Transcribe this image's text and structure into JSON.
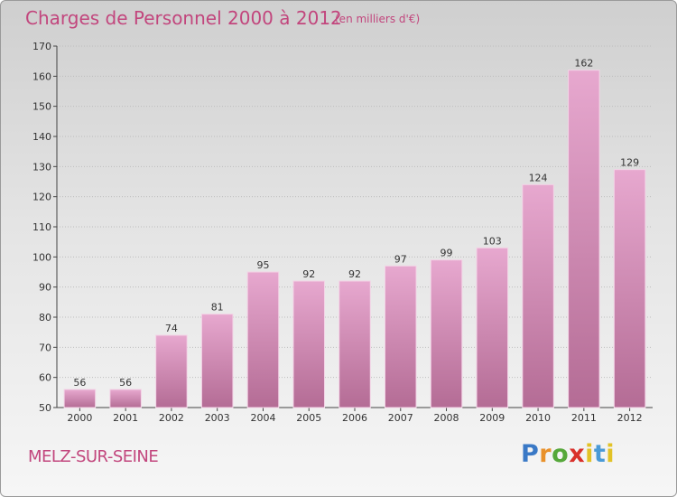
{
  "header": {
    "title": "Charges de Personnel 2000 à 2012",
    "subtitle": "(en milliers d'€)"
  },
  "commune": "MELZ-SUR-SEINE",
  "logo": {
    "letters": [
      "P",
      "r",
      "o",
      "x",
      "i",
      "t",
      "i"
    ],
    "colors": [
      "#3a79c6",
      "#e9912a",
      "#56a83a",
      "#d9302a",
      "#e2c226",
      "#4a9ad6",
      "#e2c226"
    ]
  },
  "colors": {
    "bar_top": "#e7a8cf",
    "bar_bottom": "#b46c95",
    "gridline": "#bdbdbd"
  },
  "chart_data": {
    "type": "bar",
    "categories": [
      "2000",
      "2001",
      "2002",
      "2003",
      "2004",
      "2005",
      "2006",
      "2007",
      "2008",
      "2009",
      "2010",
      "2011",
      "2012"
    ],
    "values": [
      56,
      56,
      74,
      81,
      95,
      92,
      92,
      97,
      99,
      103,
      124,
      162,
      129
    ],
    "value_labels": [
      "56",
      "56",
      "74",
      "81",
      "95",
      "92",
      "92",
      "97",
      "99",
      "103",
      "124",
      "162",
      "129"
    ],
    "ylim": [
      50,
      170
    ],
    "yticks": [
      50,
      60,
      70,
      80,
      90,
      100,
      110,
      120,
      130,
      140,
      150,
      160,
      170
    ],
    "ytick_labels": [
      "50",
      "60",
      "70",
      "80",
      "90",
      "100",
      "110",
      "120",
      "130",
      "140",
      "150",
      "160",
      "170"
    ],
    "grid": true
  }
}
